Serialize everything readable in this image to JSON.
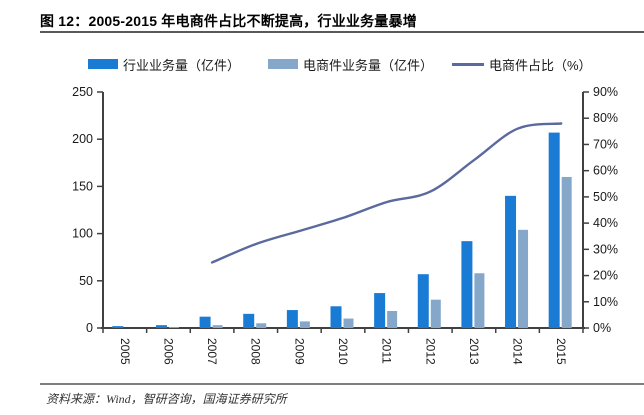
{
  "figure": {
    "title": "图 12：2005-2015 年电商件占比不断提高，行业业务量暴增",
    "source": "资料来源：Wind，智研咨询，国海证券研究所"
  },
  "legend": [
    {
      "label": "行业业务量（亿件）",
      "type": "bar",
      "color": "#1a7bd4"
    },
    {
      "label": "电商件业务量（亿件）",
      "type": "bar",
      "color": "#85a7ca"
    },
    {
      "label": "电商件占比（%）",
      "type": "line",
      "color": "#5a699e"
    }
  ],
  "chart_data": {
    "type": "combo",
    "categories": [
      "2005",
      "2006",
      "2007",
      "2008",
      "2009",
      "2010",
      "2011",
      "2012",
      "2013",
      "2014",
      "2015"
    ],
    "series": [
      {
        "name": "行业业务量（亿件）",
        "type": "bar",
        "axis": "left",
        "color": "#1a7bd4",
        "values": [
          2,
          3,
          12,
          15,
          19,
          23,
          37,
          57,
          92,
          140,
          207
        ]
      },
      {
        "name": "电商件业务量（亿件）",
        "type": "bar",
        "axis": "left",
        "color": "#85a7ca",
        "values": [
          0.5,
          1,
          3,
          5,
          7,
          10,
          18,
          30,
          58,
          104,
          160
        ]
      },
      {
        "name": "电商件占比（%）",
        "type": "line",
        "axis": "right",
        "color": "#5a699e",
        "values": [
          null,
          null,
          25,
          32,
          37,
          42,
          48,
          52,
          64,
          76,
          78
        ]
      }
    ],
    "left_axis": {
      "min": 0,
      "max": 250,
      "step": 50,
      "suffix": ""
    },
    "right_axis": {
      "min": 0,
      "max": 90,
      "step": 10,
      "suffix": "%"
    },
    "grid": false,
    "legend_position": "top",
    "axis_color": "#404040",
    "tick_label_color": "#1a1a1a"
  }
}
